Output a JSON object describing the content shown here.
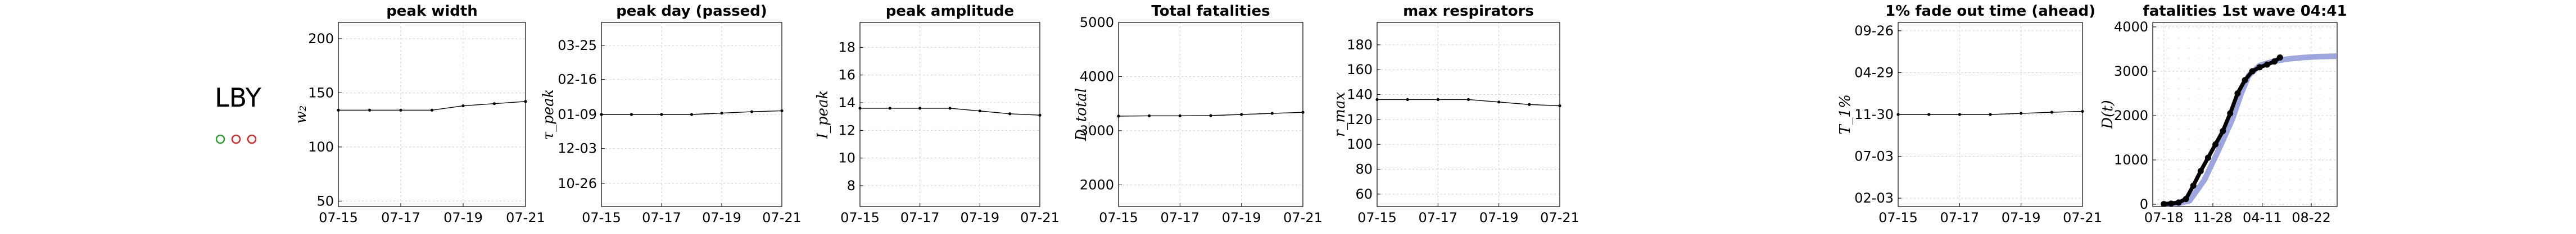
{
  "country": {
    "code": "LBY",
    "dots": [
      {
        "color": "#2ca02c"
      },
      {
        "color": "#d62728"
      },
      {
        "color": "#d62728"
      }
    ]
  },
  "panels": [
    {
      "id": "peak-width",
      "title": "peak width",
      "ylabel": "w₂",
      "chart_data": {
        "type": "line",
        "title": "peak width",
        "x_ticks": [
          "07-15",
          "07-17",
          "07-19",
          "07-21"
        ],
        "x": [
          "07-15",
          "07-16",
          "07-17",
          "07-18",
          "07-19",
          "07-20",
          "07-21"
        ],
        "values": [
          134,
          134,
          134,
          134,
          138,
          140,
          142
        ],
        "y_ticks": [
          "50",
          "100",
          "150",
          "200"
        ],
        "ylim": [
          45,
          215
        ],
        "grid": true
      }
    },
    {
      "id": "peak-day",
      "title": "peak day (passed)",
      "ylabel": "τ_peak",
      "chart_data": {
        "type": "line",
        "title": "peak day (passed)",
        "x_ticks": [
          "07-15",
          "07-17",
          "07-19",
          "07-21"
        ],
        "x": [
          "07-15",
          "07-16",
          "07-17",
          "07-18",
          "07-19",
          "07-20",
          "07-21"
        ],
        "values": [
          0,
          0,
          0,
          0,
          1.5,
          3,
          4
        ],
        "y_ticks": [
          "10-26",
          "12-03",
          "01-09",
          "02-16",
          "03-25"
        ],
        "y_tick_values": [
          -75,
          -37,
          0,
          38,
          75
        ],
        "ylim": [
          -100,
          100
        ],
        "grid": true
      }
    },
    {
      "id": "peak-amplitude",
      "title": "peak amplitude",
      "ylabel": "I_peak",
      "chart_data": {
        "type": "line",
        "title": "peak amplitude",
        "x_ticks": [
          "07-15",
          "07-17",
          "07-19",
          "07-21"
        ],
        "x": [
          "07-15",
          "07-16",
          "07-17",
          "07-18",
          "07-19",
          "07-20",
          "07-21"
        ],
        "values": [
          13.6,
          13.6,
          13.6,
          13.6,
          13.4,
          13.2,
          13.1
        ],
        "y_ticks": [
          "8",
          "10",
          "12",
          "14",
          "16",
          "18"
        ],
        "ylim": [
          6.5,
          19.8
        ],
        "grid": true
      }
    },
    {
      "id": "total-fatalities",
      "title": "Total fatalities",
      "ylabel": "D_total",
      "chart_data": {
        "type": "line",
        "title": "Total fatalities",
        "x_ticks": [
          "07-15",
          "07-17",
          "07-19",
          "07-21"
        ],
        "x": [
          "07-15",
          "07-16",
          "07-17",
          "07-18",
          "07-19",
          "07-20",
          "07-21"
        ],
        "values": [
          3270,
          3275,
          3275,
          3280,
          3300,
          3320,
          3340
        ],
        "y_ticks": [
          "2000",
          "3000",
          "4000",
          "5000"
        ],
        "ylim": [
          1600,
          5000
        ],
        "grid": true
      }
    },
    {
      "id": "max-respirators",
      "title": "max respirators",
      "ylabel": "r_max",
      "chart_data": {
        "type": "line",
        "title": "max respirators",
        "x_ticks": [
          "07-15",
          "07-17",
          "07-19",
          "07-21"
        ],
        "x": [
          "07-15",
          "07-16",
          "07-17",
          "07-18",
          "07-19",
          "07-20",
          "07-21"
        ],
        "values": [
          136,
          136,
          136,
          136,
          134,
          132,
          131
        ],
        "y_ticks": [
          "60",
          "80",
          "100",
          "120",
          "140",
          "160",
          "180"
        ],
        "ylim": [
          50,
          198
        ],
        "grid": true
      }
    },
    {
      "id": "fade-out-time",
      "title": "1% fade out time (ahead)",
      "ylabel": "T_1%",
      "chart_data": {
        "type": "line",
        "title": "1% fade out time (ahead)",
        "x_ticks": [
          "07-15",
          "07-17",
          "07-19",
          "07-21"
        ],
        "x": [
          "07-15",
          "07-16",
          "07-17",
          "07-18",
          "07-19",
          "07-20",
          "07-21"
        ],
        "values": [
          0,
          0,
          0,
          0,
          4,
          8,
          11
        ],
        "y_ticks": [
          "02-03",
          "07-03",
          "11-30",
          "04-29",
          "09-26"
        ],
        "y_tick_values": [
          -300,
          -150,
          0,
          150,
          300
        ],
        "ylim": [
          -330,
          330
        ],
        "grid": true
      }
    },
    {
      "id": "fatalities-1st-wave",
      "title": "fatalities 1st wave 04:41",
      "ylabel": "D(t)",
      "chart_data": {
        "type": "line",
        "title": "fatalities 1st wave 04:41",
        "x_ticks": [
          "07-18",
          "11-28",
          "04-11",
          "08-22"
        ],
        "x_tick_values": [
          0,
          133,
          267,
          400
        ],
        "series": [
          {
            "role": "fit",
            "color": "#8c96d9",
            "x": [
              0,
              40,
              70,
              110,
              150,
              185,
              210,
              230,
              260,
              300,
              340,
              380,
              420,
              470
            ],
            "y": [
              0,
              20,
              80,
              550,
              1250,
              1900,
              2500,
              2900,
              3130,
              3230,
              3280,
              3310,
              3330,
              3340
            ]
          },
          {
            "role": "observed",
            "color": "#000000",
            "x": [
              0,
              20,
              40,
              60,
              80,
              100,
              120,
              140,
              160,
              180,
              200,
              220,
              240,
              260,
              280,
              300,
              315
            ],
            "y": [
              5,
              15,
              40,
              120,
              420,
              750,
              1050,
              1350,
              1650,
              2050,
              2500,
              2800,
              3000,
              3090,
              3150,
              3220,
              3310
            ]
          }
        ],
        "y_ticks": [
          "0",
          "1000",
          "2000",
          "3000",
          "4000"
        ],
        "ylim": [
          -50,
          4100
        ],
        "grid": true
      }
    }
  ]
}
